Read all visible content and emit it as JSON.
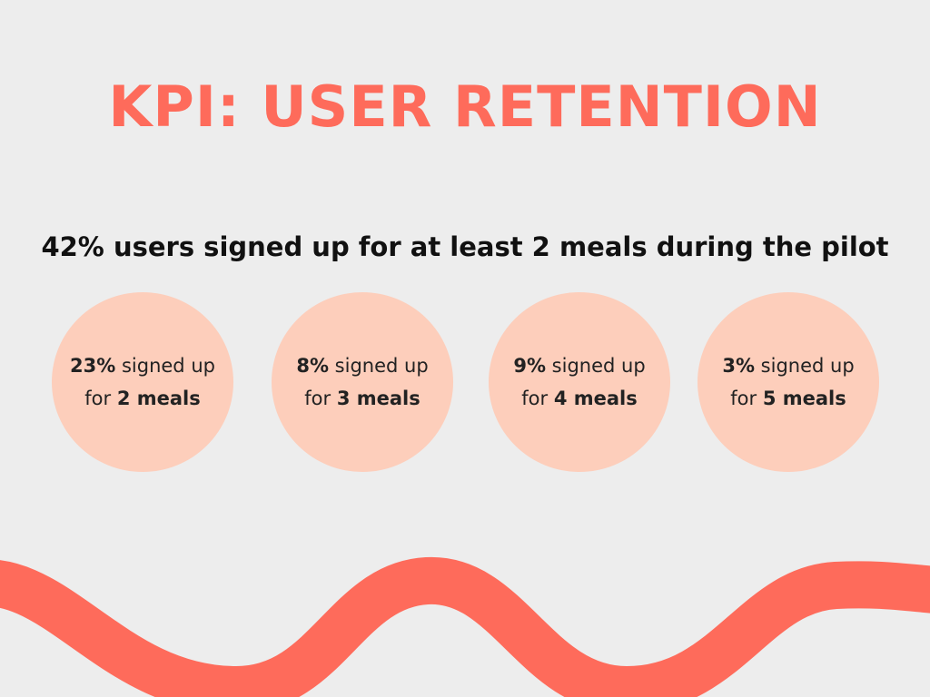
{
  "title": "KPI: USER RETENTION",
  "subtitle": "42% users signed up for at least 2 meals during the pilot",
  "colors": {
    "background": "#ededed",
    "accent": "#fe6b5b",
    "circle": "#fdcebb",
    "text": "#111111"
  },
  "stats": [
    {
      "percent": "23%",
      "text_mid": " signed up",
      "text_for": "for ",
      "meals": "2 meals"
    },
    {
      "percent": "8%",
      "text_mid": " signed up",
      "text_for": "for ",
      "meals": "3 meals"
    },
    {
      "percent": "9%",
      "text_mid": " signed up",
      "text_for": "for ",
      "meals": "4 meals"
    },
    {
      "percent": "3%",
      "text_mid": " signed up",
      "text_for": "for ",
      "meals": "5 meals"
    }
  ]
}
